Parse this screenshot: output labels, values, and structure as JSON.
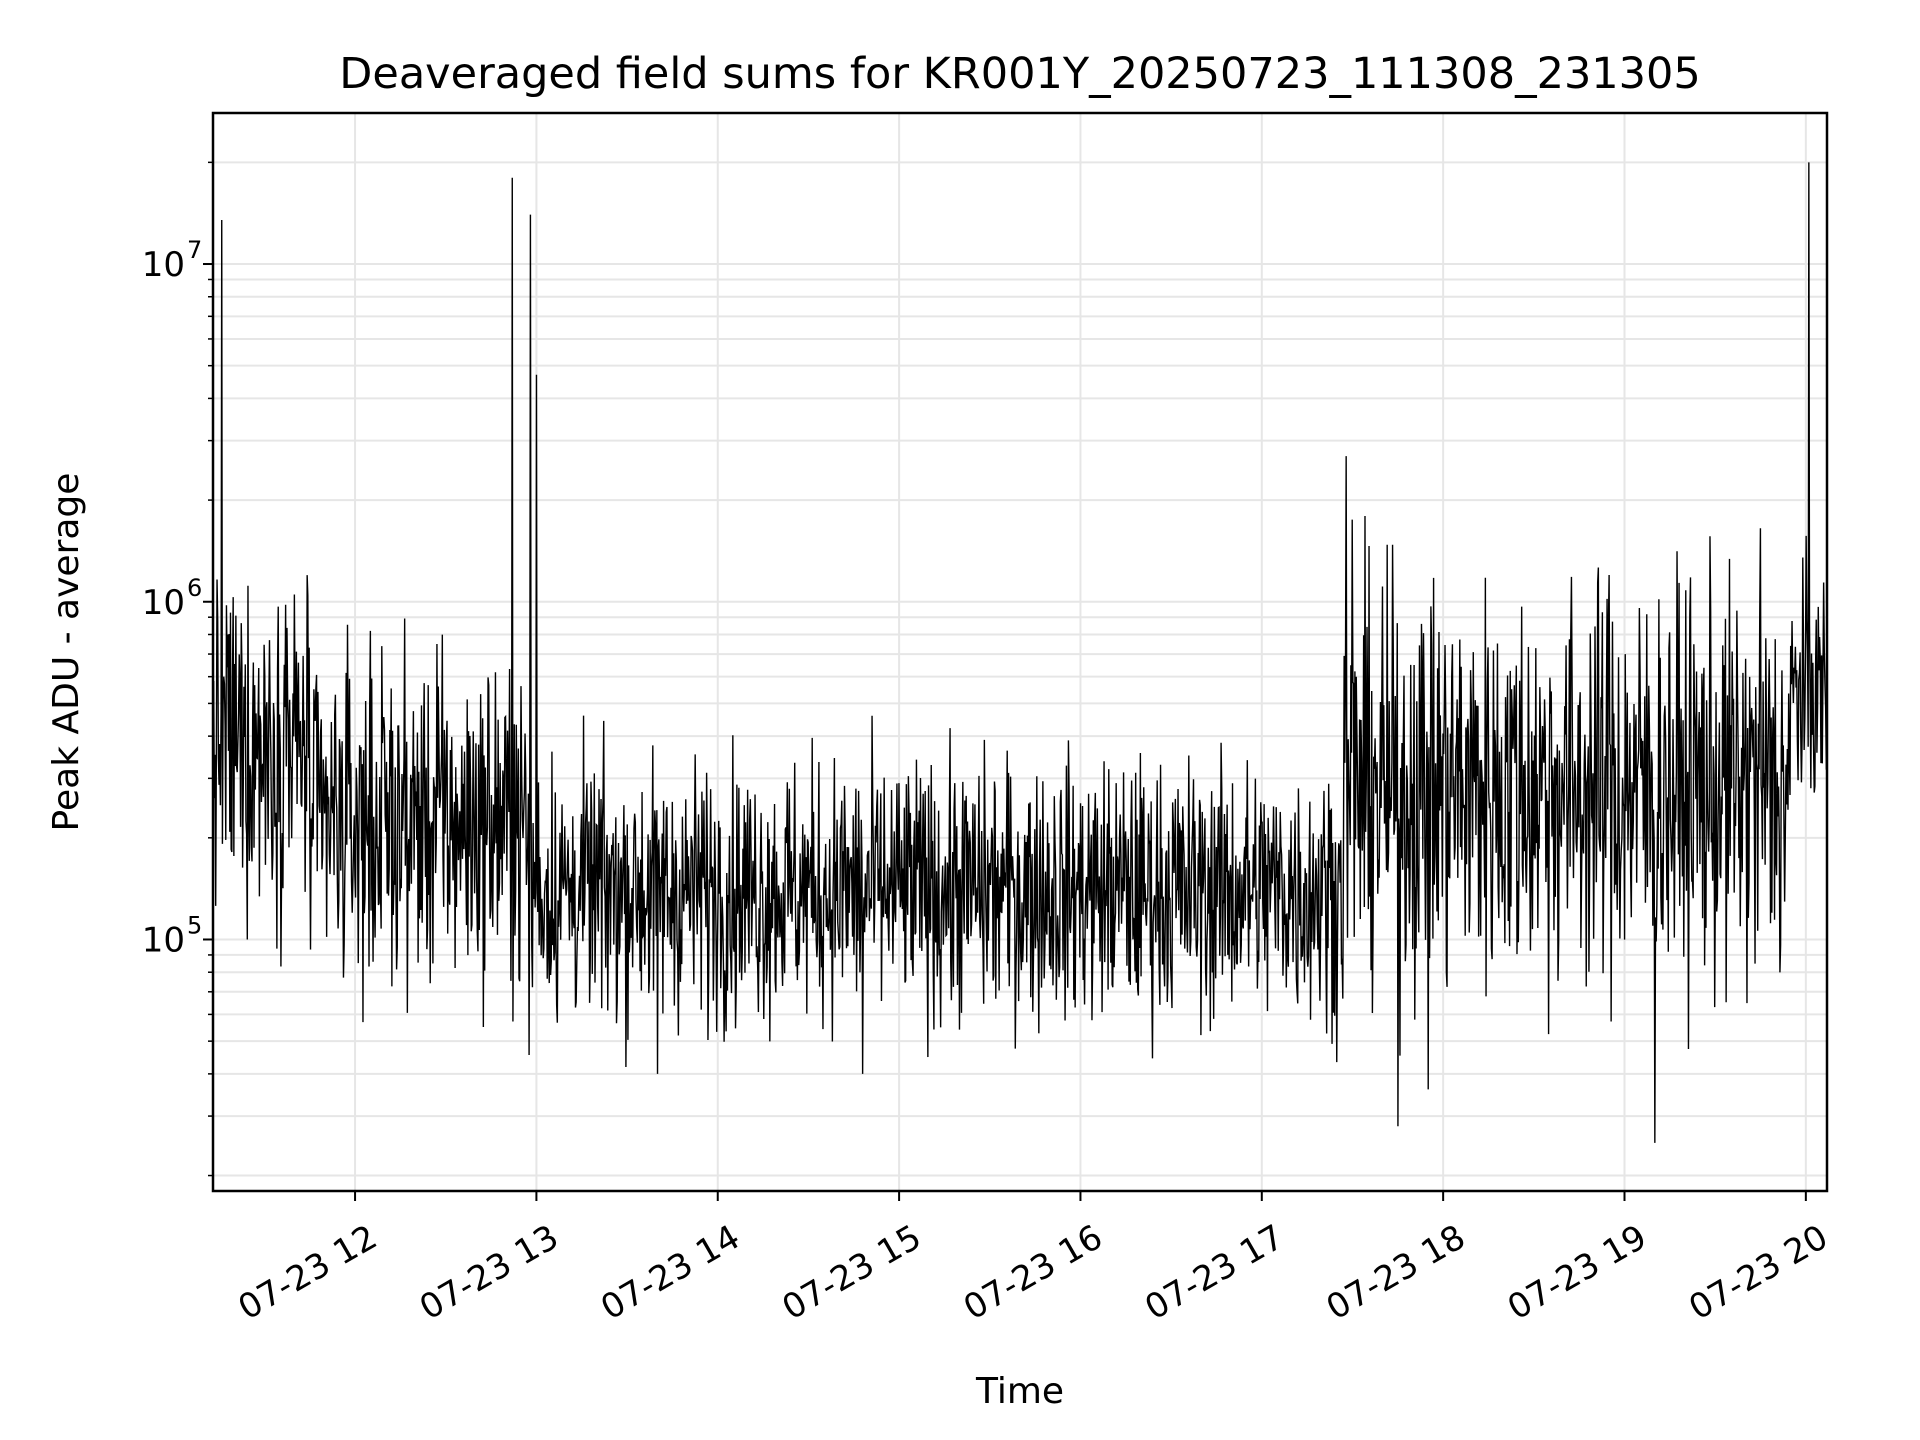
{
  "chart_data": {
    "type": "line",
    "title": "Deaveraged field sums for KR001Y_20250723_111308_231305",
    "xlabel": "Time",
    "ylabel": "Peak ADU - average",
    "x_tick_labels": [
      "07-23 12",
      "07-23 13",
      "07-23 14",
      "07-23 15",
      "07-23 16",
      "07-23 17",
      "07-23 18",
      "07-23 19",
      "07-23 20"
    ],
    "x_ticks": [
      "2025-07-23T12:00",
      "2025-07-23T13:00",
      "2025-07-23T14:00",
      "2025-07-23T15:00",
      "2025-07-23T16:00",
      "2025-07-23T17:00",
      "2025-07-23T18:00",
      "2025-07-23T19:00",
      "2025-07-23T20:00"
    ],
    "y_scale": "log",
    "y_tick_labels": [
      {
        "base": "10",
        "exp": "5"
      },
      {
        "base": "10",
        "exp": "6"
      },
      {
        "base": "10",
        "exp": "7"
      }
    ],
    "y_ticks": [
      100000,
      1000000,
      10000000
    ],
    "xlim": [
      "2025-07-23T11:13",
      "2025-07-23T20:07"
    ],
    "ylim": [
      18000,
      28000000
    ],
    "grid": true,
    "series": [
      {
        "line_color": "#000000",
        "segments": [
          {
            "start": "2025-07-23T11:13",
            "end": "2025-07-23T11:45",
            "base": 380000,
            "spread": 0.55
          },
          {
            "start": "2025-07-23T11:45",
            "end": "2025-07-23T12:57",
            "base": 220000,
            "spread": 0.55
          },
          {
            "start": "2025-07-23T12:57",
            "end": "2025-07-23T17:27",
            "base": 140000,
            "spread": 0.45
          },
          {
            "start": "2025-07-23T17:27",
            "end": "2025-07-23T19:55",
            "base": 280000,
            "spread": 0.7
          },
          {
            "start": "2025-07-23T19:55",
            "end": "2025-07-23T20:07",
            "base": 550000,
            "spread": 0.4
          }
        ],
        "spikes": [
          {
            "t": "2025-07-23T11:16",
            "y": 13500000
          },
          {
            "t": "2025-07-23T11:18",
            "y": 800000
          },
          {
            "t": "2025-07-23T11:37",
            "y": 980000
          },
          {
            "t": "2025-07-23T12:05",
            "y": 820000
          },
          {
            "t": "2025-07-23T12:27",
            "y": 750000
          },
          {
            "t": "2025-07-23T12:52",
            "y": 18000000
          },
          {
            "t": "2025-07-23T12:58",
            "y": 14000000
          },
          {
            "t": "2025-07-23T13:00",
            "y": 4700000
          },
          {
            "t": "2025-07-23T13:40",
            "y": 40000
          },
          {
            "t": "2025-07-23T14:48",
            "y": 40000
          },
          {
            "t": "2025-07-23T17:28",
            "y": 2700000
          },
          {
            "t": "2025-07-23T17:30",
            "y": 1750000
          },
          {
            "t": "2025-07-23T17:45",
            "y": 28000
          },
          {
            "t": "2025-07-23T17:55",
            "y": 36000
          },
          {
            "t": "2025-07-23T18:55",
            "y": 1200000
          },
          {
            "t": "2025-07-23T19:10",
            "y": 25000
          },
          {
            "t": "2025-07-23T19:45",
            "y": 1650000
          },
          {
            "t": "2025-07-23T20:01",
            "y": 20000000
          }
        ]
      }
    ]
  }
}
